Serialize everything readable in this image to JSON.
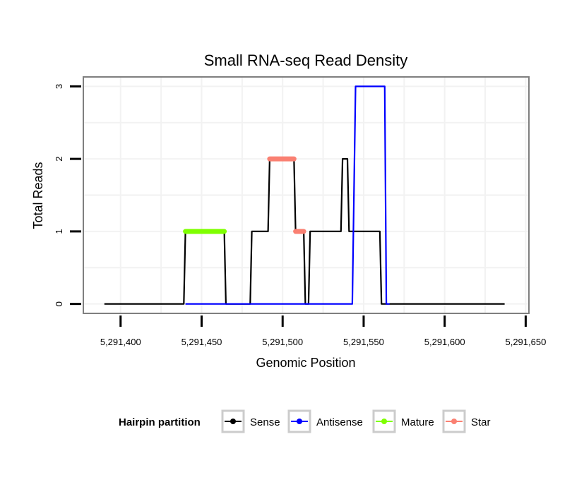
{
  "chart_data": {
    "type": "line",
    "title": "Small RNA-seq Read Density",
    "xlabel": "Genomic Position",
    "ylabel": "Total Reads",
    "xlim": [
      5291377,
      5291652
    ],
    "ylim": [
      -0.13,
      3.13
    ],
    "x_ticks": [
      5291400,
      5291450,
      5291500,
      5291550,
      5291600,
      5291650
    ],
    "x_tick_labels": [
      "5,291,400",
      "5,291,450",
      "5,291,500",
      "5,291,550",
      "5,291,600",
      "5,291,650"
    ],
    "y_ticks": [
      0,
      1,
      2,
      3
    ],
    "y_tick_labels": [
      "0",
      "1",
      "2",
      "3"
    ],
    "grid": true,
    "legend": {
      "title": "Hairpin partition",
      "position": "bottom",
      "entries": [
        {
          "name": "Sense",
          "color": "#000000"
        },
        {
          "name": "Antisense",
          "color": "#0000ff"
        },
        {
          "name": "Mature",
          "color": "#7fff00"
        },
        {
          "name": "Star",
          "color": "#fa8072"
        }
      ]
    },
    "series": [
      {
        "name": "Sense",
        "color": "#000000",
        "points": [
          [
            5291390,
            0
          ],
          [
            5291439,
            0
          ],
          [
            5291440,
            1
          ],
          [
            5291464,
            1
          ],
          [
            5291465,
            0
          ],
          [
            5291480,
            0
          ],
          [
            5291481,
            1
          ],
          [
            5291491,
            1
          ],
          [
            5291492,
            2
          ],
          [
            5291507,
            2
          ],
          [
            5291508,
            1
          ],
          [
            5291513,
            1
          ],
          [
            5291514,
            0
          ],
          [
            5291516,
            0
          ],
          [
            5291517,
            1
          ],
          [
            5291536,
            1
          ],
          [
            5291537,
            2
          ],
          [
            5291540,
            2
          ],
          [
            5291541,
            1
          ],
          [
            5291560,
            1
          ],
          [
            5291561,
            0
          ],
          [
            5291637,
            0
          ]
        ]
      },
      {
        "name": "Antisense",
        "color": "#0000ff",
        "points": [
          [
            5291440,
            0
          ],
          [
            5291543,
            0
          ],
          [
            5291545,
            3
          ],
          [
            5291563,
            3
          ],
          [
            5291564,
            0
          ],
          [
            5291566,
            0
          ]
        ]
      },
      {
        "name": "Mature",
        "color": "#7fff00",
        "points": [
          [
            5291440,
            1
          ],
          [
            5291464,
            1
          ]
        ]
      },
      {
        "name": "Star",
        "color": "#fa8072",
        "points": [
          [
            5291492,
            2
          ],
          [
            5291507,
            2
          ]
        ]
      },
      {
        "name": "Star",
        "color": "#fa8072",
        "points": [
          [
            5291508,
            1
          ],
          [
            5291513,
            1
          ]
        ]
      }
    ]
  }
}
